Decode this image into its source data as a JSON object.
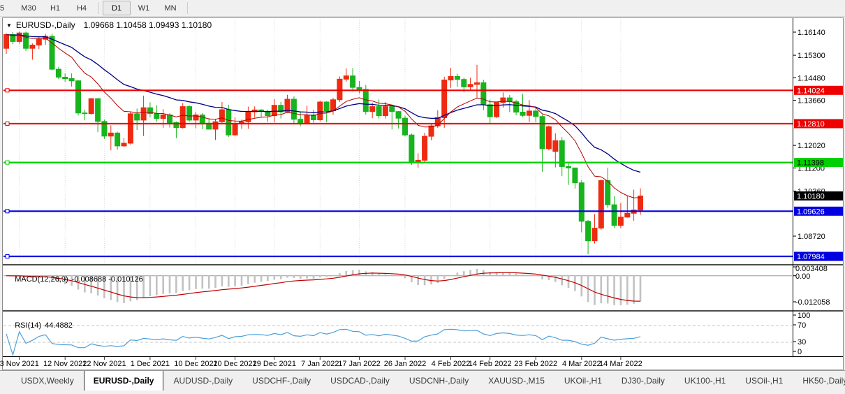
{
  "toolbar": {
    "timeframe_groups": [
      [
        "5",
        "M30",
        "H1",
        "H4"
      ],
      [
        "D1",
        "W1",
        "MN"
      ]
    ],
    "active_timeframe": "D1"
  },
  "icons": {
    "symbol_dropdown": "▼",
    "tab_scroll_left": "◄",
    "tab_scroll_right": "►"
  },
  "chart_data": {
    "type": "candlestick",
    "symbol": "EURUSD-,Daily",
    "title_ohlc": "1.09668 1.10458 1.09493 1.10180",
    "up_color": "#ee2b10",
    "down_color": "#17b41e",
    "ma_fast_color": "#b40000",
    "ma_slow_color": "#000085",
    "grid_color": "#dcdcdc",
    "ylim": [
      1.077,
      1.1655
    ],
    "price_axis_ticks": [
      "1.16140",
      "1.15300",
      "1.14480",
      "1.13660",
      "1.12020",
      "1.11200",
      "1.10360",
      "1.08720"
    ],
    "current_price": {
      "label": "1.10180",
      "value": 1.1018,
      "box_color": "#000000",
      "text_color": "#ffffff"
    },
    "hlines": [
      {
        "price": 1.14024,
        "label": "1.14024",
        "color": "#ee0000",
        "text_color": "#ffffff"
      },
      {
        "price": 1.1281,
        "label": "1.12810",
        "color": "#ee0000",
        "text_color": "#ffffff"
      },
      {
        "price": 1.11398,
        "label": "1.11398",
        "color": "#00cf00",
        "text_color": "#000000"
      },
      {
        "price": 1.09626,
        "label": "1.09626",
        "color": "#0000e0",
        "text_color": "#ffffff"
      },
      {
        "price": 1.07984,
        "label": "1.07984",
        "color": "#0000e0",
        "text_color": "#ffffff"
      }
    ],
    "x_ticks": [
      {
        "i": 2,
        "label": "3 Nov 2021"
      },
      {
        "i": 9,
        "label": "12 Nov 2021"
      },
      {
        "i": 15,
        "label": "22 Nov 2021"
      },
      {
        "i": 22,
        "label": "1 Dec 2021"
      },
      {
        "i": 29,
        "label": "10 Dec 2021"
      },
      {
        "i": 35,
        "label": "20 Dec 2021"
      },
      {
        "i": 41,
        "label": "29 Dec 2021"
      },
      {
        "i": 48,
        "label": "7 Jan 2022"
      },
      {
        "i": 54,
        "label": "17 Jan 2022"
      },
      {
        "i": 61,
        "label": "26 Jan 2022"
      },
      {
        "i": 68,
        "label": "4 Feb 2022"
      },
      {
        "i": 74,
        "label": "14 Feb 2022"
      },
      {
        "i": 81,
        "label": "23 Feb 2022"
      },
      {
        "i": 88,
        "label": "4 Mar 2022"
      },
      {
        "i": 94,
        "label": "14 Mar 2022"
      }
    ],
    "candles": [
      [
        1.1555,
        1.161,
        1.1535,
        1.1605
      ],
      [
        1.1605,
        1.1614,
        1.157,
        1.158
      ],
      [
        1.158,
        1.1616,
        1.1572,
        1.1611
      ],
      [
        1.1611,
        1.1616,
        1.1545,
        1.1555
      ],
      [
        1.1555,
        1.1573,
        1.1514,
        1.1567
      ],
      [
        1.1567,
        1.1595,
        1.1552,
        1.1588
      ],
      [
        1.1588,
        1.1608,
        1.1568,
        1.1599
      ],
      [
        1.1599,
        1.1609,
        1.1475,
        1.1479
      ],
      [
        1.1479,
        1.1488,
        1.1443,
        1.145
      ],
      [
        1.145,
        1.1464,
        1.1433,
        1.1445
      ],
      [
        1.1445,
        1.1464,
        1.1416,
        1.1437
      ],
      [
        1.1437,
        1.144,
        1.1311,
        1.132
      ],
      [
        1.132,
        1.1332,
        1.1293,
        1.1318
      ],
      [
        1.1318,
        1.1374,
        1.1313,
        1.1372
      ],
      [
        1.1372,
        1.1374,
        1.125,
        1.1289
      ],
      [
        1.1289,
        1.1296,
        1.1226,
        1.1236
      ],
      [
        1.1236,
        1.1275,
        1.1184,
        1.1247
      ],
      [
        1.1247,
        1.1252,
        1.1186,
        1.12
      ],
      [
        1.12,
        1.1229,
        1.1197,
        1.121
      ],
      [
        1.121,
        1.1323,
        1.1205,
        1.1317
      ],
      [
        1.1317,
        1.1336,
        1.1258,
        1.1294
      ],
      [
        1.1294,
        1.1383,
        1.1236,
        1.1339
      ],
      [
        1.1339,
        1.1359,
        1.1305,
        1.1318
      ],
      [
        1.1318,
        1.1348,
        1.1288,
        1.13
      ],
      [
        1.13,
        1.1334,
        1.1266,
        1.1313
      ],
      [
        1.1313,
        1.1319,
        1.1267,
        1.1285
      ],
      [
        1.1285,
        1.1289,
        1.1228,
        1.1267
      ],
      [
        1.1267,
        1.1356,
        1.1263,
        1.1343
      ],
      [
        1.1343,
        1.1348,
        1.1288,
        1.1294
      ],
      [
        1.1294,
        1.1324,
        1.1264,
        1.1313
      ],
      [
        1.1313,
        1.1319,
        1.1261,
        1.1283
      ],
      [
        1.1283,
        1.1302,
        1.126,
        1.1261
      ],
      [
        1.1261,
        1.1298,
        1.1222,
        1.1288
      ],
      [
        1.1288,
        1.136,
        1.1282,
        1.1332
      ],
      [
        1.1332,
        1.135,
        1.1233,
        1.124
      ],
      [
        1.124,
        1.1305,
        1.1237,
        1.128
      ],
      [
        1.128,
        1.1296,
        1.1262,
        1.1288
      ],
      [
        1.1288,
        1.1343,
        1.1262,
        1.1324
      ],
      [
        1.1324,
        1.1344,
        1.1303,
        1.1331
      ],
      [
        1.1331,
        1.1334,
        1.1304,
        1.1326
      ],
      [
        1.1326,
        1.1332,
        1.1287,
        1.131
      ],
      [
        1.131,
        1.137,
        1.1286,
        1.1348
      ],
      [
        1.1348,
        1.136,
        1.13,
        1.1324
      ],
      [
        1.1324,
        1.1386,
        1.132,
        1.137
      ],
      [
        1.137,
        1.138,
        1.1278,
        1.1297
      ],
      [
        1.1297,
        1.1324,
        1.1272,
        1.1284
      ],
      [
        1.1284,
        1.1347,
        1.1281,
        1.1313
      ],
      [
        1.1313,
        1.1332,
        1.1285,
        1.1295
      ],
      [
        1.1295,
        1.1365,
        1.1289,
        1.136
      ],
      [
        1.136,
        1.1363,
        1.1286,
        1.1328
      ],
      [
        1.1328,
        1.1375,
        1.1314,
        1.1368
      ],
      [
        1.1368,
        1.1453,
        1.136,
        1.1443
      ],
      [
        1.1443,
        1.1482,
        1.1434,
        1.1455
      ],
      [
        1.1455,
        1.1483,
        1.1398,
        1.1413
      ],
      [
        1.1413,
        1.1436,
        1.1391,
        1.1406
      ],
      [
        1.1406,
        1.1422,
        1.1314,
        1.1325
      ],
      [
        1.1325,
        1.1357,
        1.1301,
        1.1343
      ],
      [
        1.1343,
        1.1369,
        1.13,
        1.131
      ],
      [
        1.131,
        1.136,
        1.13,
        1.1343
      ],
      [
        1.1343,
        1.1349,
        1.126,
        1.1325
      ],
      [
        1.1325,
        1.1327,
        1.1263,
        1.1301
      ],
      [
        1.1301,
        1.131,
        1.1235,
        1.124
      ],
      [
        1.124,
        1.1245,
        1.1131,
        1.1144
      ],
      [
        1.1144,
        1.1173,
        1.1121,
        1.1148
      ],
      [
        1.1148,
        1.1248,
        1.1141,
        1.1235
      ],
      [
        1.1235,
        1.1279,
        1.1221,
        1.1273
      ],
      [
        1.1273,
        1.133,
        1.1266,
        1.1303
      ],
      [
        1.1303,
        1.1452,
        1.1266,
        1.144
      ],
      [
        1.144,
        1.1484,
        1.1411,
        1.1453
      ],
      [
        1.1453,
        1.1463,
        1.1415,
        1.1442
      ],
      [
        1.1442,
        1.1449,
        1.1396,
        1.1415
      ],
      [
        1.1415,
        1.1448,
        1.1403,
        1.1424
      ],
      [
        1.1424,
        1.1495,
        1.1375,
        1.143
      ],
      [
        1.143,
        1.1441,
        1.133,
        1.135
      ],
      [
        1.135,
        1.1369,
        1.1278,
        1.1306
      ],
      [
        1.1306,
        1.136,
        1.1301,
        1.1358
      ],
      [
        1.1358,
        1.1395,
        1.1339,
        1.1375
      ],
      [
        1.1375,
        1.1385,
        1.1323,
        1.1361
      ],
      [
        1.1361,
        1.1368,
        1.1312,
        1.1323
      ],
      [
        1.1323,
        1.139,
        1.1305,
        1.1311
      ],
      [
        1.1311,
        1.1367,
        1.1287,
        1.1327
      ],
      [
        1.1327,
        1.1344,
        1.1286,
        1.1307
      ],
      [
        1.1307,
        1.1313,
        1.1106,
        1.119
      ],
      [
        1.119,
        1.1274,
        1.1184,
        1.127
      ],
      [
        1.118,
        1.1246,
        1.1122,
        1.1219
      ],
      [
        1.1219,
        1.1232,
        1.109,
        1.1125
      ],
      [
        1.1125,
        1.1136,
        1.1058,
        1.112
      ],
      [
        1.112,
        1.1121,
        1.1045,
        1.1066
      ],
      [
        1.1066,
        1.1075,
        1.0886,
        1.0926
      ],
      [
        1.0926,
        1.0931,
        1.0806,
        1.0855
      ],
      [
        1.0855,
        1.0952,
        1.0845,
        1.0901
      ],
      [
        1.0901,
        1.1078,
        1.0895,
        1.1074
      ],
      [
        1.1074,
        1.1121,
        1.0975,
        1.0986
      ],
      [
        1.0986,
        1.1018,
        1.0902,
        1.0911
      ],
      [
        1.0911,
        1.0993,
        1.0901,
        1.0941
      ],
      [
        1.0941,
        1.1019,
        1.0939,
        1.0955
      ],
      [
        1.0955,
        1.1041,
        1.0928,
        1.0967
      ],
      [
        1.09668,
        1.10458,
        1.09493,
        1.1018
      ]
    ],
    "macd": {
      "label": "MACD(12,26,9)",
      "display_values": "-0.008688 -0.010126",
      "fast": 12,
      "slow": 26,
      "signal": 9,
      "histogram_color": "#c2c2c2",
      "signal_color": "#c00000",
      "axis": {
        "max_label": "0.003408",
        "zero_label": "0.00",
        "min_label": "-0.012058",
        "max": 0.003408,
        "min": -0.012058
      }
    },
    "rsi": {
      "label": "RSI(14)",
      "display_value": "44.4882",
      "period": 14,
      "line_color": "#4aa0dc",
      "axis_labels": [
        "100",
        "70",
        "30",
        "0"
      ],
      "levels": [
        70,
        30
      ]
    }
  },
  "tabs": {
    "items": [
      "USDX,Weekly",
      "EURUSD-,Daily",
      "AUDUSD-,Daily",
      "USDCHF-,Daily",
      "USDCAD-,Daily",
      "USDCNH-,Daily",
      "XAUUSD-,M15",
      "UKOil-,H1",
      "DJ30-,Daily",
      "UK100-,H1",
      "USOil-,H1",
      "HK50-,Daily"
    ],
    "active": "EURUSD-,Daily"
  }
}
